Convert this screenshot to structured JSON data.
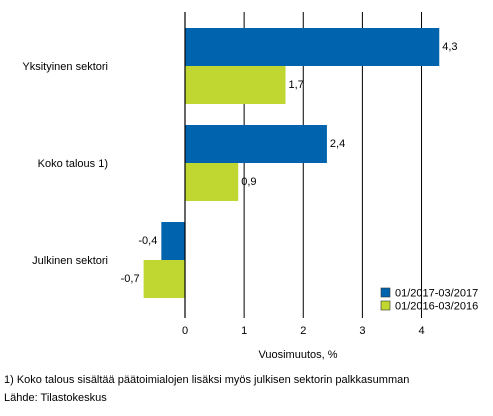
{
  "chart_data": {
    "type": "bar",
    "orientation": "horizontal",
    "categories": [
      "Yksityinen sektori",
      "Koko talous 1)",
      "Julkinen sektori"
    ],
    "series": [
      {
        "name": "01/2017-03/2017",
        "values": [
          4.3,
          2.4,
          -0.4
        ],
        "color": "#0063ae"
      },
      {
        "name": "01/2016-03/2016",
        "values": [
          1.7,
          0.9,
          -0.7
        ],
        "color": "#bfd730"
      }
    ],
    "xlabel": "Vuosimuutos, %",
    "xlim": [
      -1.15,
      4.6
    ],
    "xticks": [
      0,
      1,
      2,
      3,
      4
    ],
    "grid": true,
    "legend_position": "bottom-right"
  },
  "footnote": "1) Koko talous sisältää päätoimialojen lisäksi myös julkisen sektorin palkkasumman",
  "source": "Lähde: Tilastokeskus"
}
